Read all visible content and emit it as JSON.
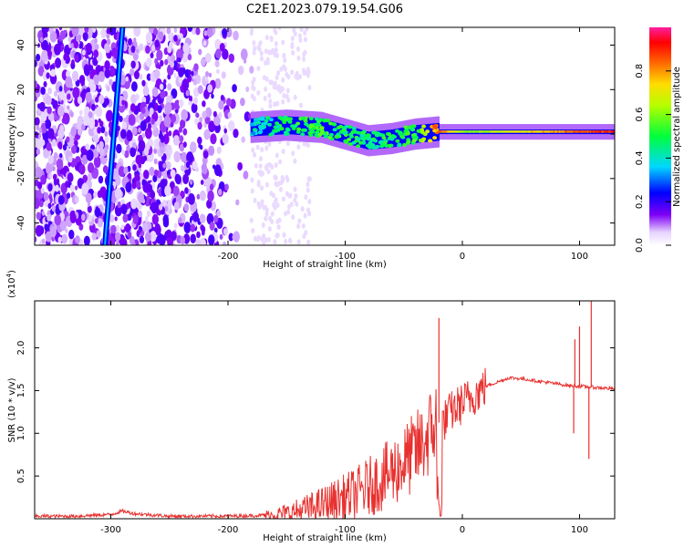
{
  "title": "C2E1.2023.079.19.54.G06",
  "chart_data": [
    {
      "type": "heatmap",
      "xlabel": "Height of straight line (km)",
      "ylabel": "Frequency (Hz)",
      "xlim": [
        -365,
        130
      ],
      "ylim": [
        -50,
        48
      ],
      "xticks": [
        -300,
        -200,
        -100,
        0,
        100
      ],
      "xtick_labels": [
        "-300",
        "-200",
        "-100",
        "0",
        "100"
      ],
      "yticks": [
        -40,
        -20,
        0,
        20,
        40
      ],
      "ytick_labels": [
        "-40",
        "-20",
        "0",
        "20",
        "40"
      ],
      "colorbar": {
        "label": "Normalized spectral amplitude",
        "range": [
          0,
          1
        ],
        "ticks": [
          0.0,
          0.2,
          0.4,
          0.6,
          0.8
        ],
        "tick_labels": [
          "0.0",
          "0.2",
          "0.4",
          "0.6",
          "0.8"
        ],
        "colormap": "rainbow (white-violet-blue-cyan-green-yellow-orange-red-magenta)"
      },
      "features": {
        "noise_band_x": [
          -365,
          -175
        ],
        "tilted_line": {
          "x_start": -305,
          "freq_start": -50,
          "x_end": -290,
          "freq_end": 48,
          "amplitude": 0.25
        },
        "tracked_tone": [
          {
            "x": -180,
            "freq": 3,
            "amplitude": 0.35
          },
          {
            "x": -150,
            "freq": 4,
            "amplitude": 0.45
          },
          {
            "x": -120,
            "freq": 3,
            "amplitude": 0.5
          },
          {
            "x": -100,
            "freq": 0,
            "amplitude": 0.45
          },
          {
            "x": -80,
            "freq": -3,
            "amplitude": 0.45
          },
          {
            "x": -60,
            "freq": -2,
            "amplitude": 0.45
          },
          {
            "x": -40,
            "freq": 0,
            "amplitude": 0.5
          },
          {
            "x": -20,
            "freq": 1,
            "amplitude": 0.85
          },
          {
            "x": 0,
            "freq": 1,
            "amplitude": 0.6
          },
          {
            "x": 50,
            "freq": 1,
            "amplitude": 0.7
          },
          {
            "x": 100,
            "freq": 1,
            "amplitude": 0.85
          },
          {
            "x": 130,
            "freq": 1,
            "amplitude": 0.9
          }
        ]
      }
    },
    {
      "type": "line",
      "xlabel": "Height of straight line (km)",
      "ylabel": "SNR (10 * v/v)",
      "scale_label": "(x10",
      "scale_exponent": "4",
      "scale_close": ")",
      "xlim": [
        -365,
        130
      ],
      "ylim": [
        0,
        2.55
      ],
      "xticks": [
        -300,
        -200,
        -100,
        0,
        100
      ],
      "xtick_labels": [
        "-300",
        "-200",
        "-100",
        "0",
        "100"
      ],
      "yticks": [
        0.5,
        1.0,
        1.5,
        2.0
      ],
      "ytick_labels": [
        "0.5",
        "1.0",
        "1.5",
        "2.0"
      ],
      "series": [
        {
          "color": "#e8312f",
          "x": [
            -365,
            -330,
            -300,
            -290,
            -280,
            -250,
            -200,
            -170,
            -150,
            -130,
            -110,
            -90,
            -70,
            -55,
            -45,
            -35,
            -28,
            -22,
            -18,
            -10,
            0,
            10,
            20,
            30,
            40,
            50,
            60,
            70,
            80,
            90,
            100,
            110,
            120,
            130
          ],
          "y": [
            0.03,
            0.03,
            0.05,
            0.09,
            0.06,
            0.03,
            0.03,
            0.04,
            0.06,
            0.12,
            0.2,
            0.3,
            0.45,
            0.6,
            0.72,
            0.85,
            1.0,
            1.15,
            1.1,
            1.25,
            1.35,
            1.45,
            1.55,
            1.6,
            1.65,
            1.64,
            1.62,
            1.6,
            1.58,
            1.56,
            1.55,
            1.54,
            1.53,
            1.52
          ]
        }
      ],
      "spikes": [
        {
          "x": -20,
          "y": 2.35
        },
        {
          "x": 95,
          "y": 1.0
        },
        {
          "x": 96,
          "y": 2.1
        },
        {
          "x": 100,
          "y": 2.25
        },
        {
          "x": 108,
          "y": 0.7
        },
        {
          "x": 110,
          "y": 2.55
        }
      ]
    }
  ]
}
